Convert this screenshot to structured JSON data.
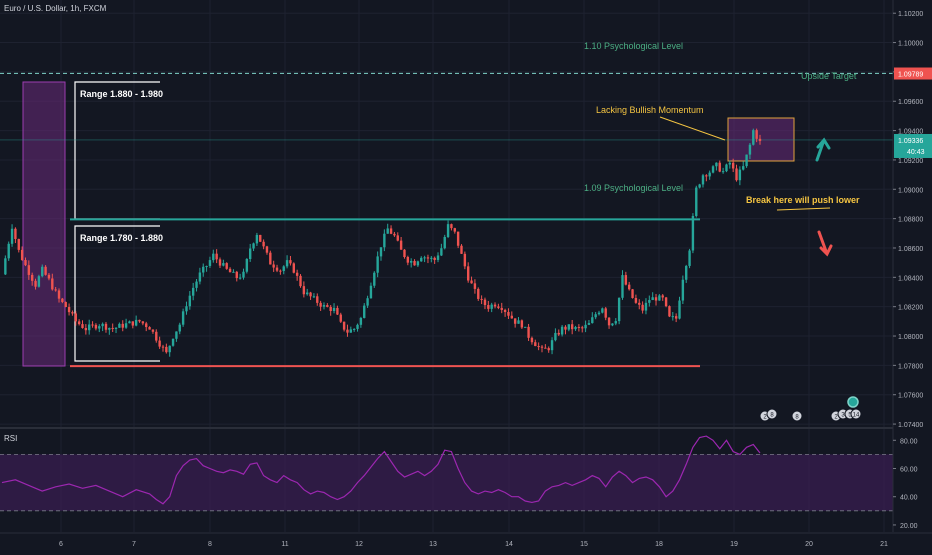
{
  "symbol_title": "Euro / U.S. Dollar, 1h, FXCM",
  "rsi_title": "RSI",
  "colors": {
    "background": "#131722",
    "up": "#26a69a",
    "down": "#ef5350",
    "resistance": "#26a69a",
    "support": "#ef5350",
    "rsi_line": "#9c27b0",
    "rsi_band": "#3b1e52",
    "annotation_text": "#f5c542",
    "level_text": "#4caf84",
    "price_badge": "#26a69a",
    "target_badge": "#ef5350"
  },
  "chart_data": [
    {
      "type": "candlestick",
      "title": "Euro / U.S. Dollar, 1h, FXCM",
      "x_tick_labels": [
        "6",
        "7",
        "8",
        "11",
        "12",
        "13",
        "14",
        "15",
        "18",
        "19",
        "20",
        "21"
      ],
      "y_tick_labels": [
        "1.07400",
        "1.07600",
        "1.07800",
        "1.08000",
        "1.08200",
        "1.08400",
        "1.08600",
        "1.08800",
        "1.09000",
        "1.09200",
        "1.09400",
        "1.09600",
        "1.09800",
        "1.10000",
        "1.10200"
      ],
      "ylim": [
        1.0738,
        1.1029
      ],
      "current_price": "1.09336",
      "countdown": "40:43",
      "target_price": "1.09789",
      "levels": [
        {
          "price": 1.0979,
          "style": "dashed",
          "label": "Upside Target"
        },
        {
          "price": 1.08795,
          "style": "solid",
          "label": ""
        },
        {
          "price": 1.07795,
          "style": "solid",
          "label": ""
        }
      ],
      "annotations": {
        "range_upper": "Range 1.880 - 1.980",
        "range_lower": "Range 1.780 - 1.880",
        "lacking_bullish": "Lacking Bullish Momentum",
        "break_here": "Break here will push lower",
        "psych_110": "1.10 Psychological Level",
        "psych_109": "1.09 Psychological Level",
        "upside_target": "Upside Target"
      },
      "event_markers": [
        "2",
        "8",
        "8",
        "2",
        "3",
        "5",
        "14"
      ],
      "close_path": [
        [
          0,
          1.0842
        ],
        [
          3,
          1.0875
        ],
        [
          5,
          1.0858
        ],
        [
          7,
          1.0848
        ],
        [
          10,
          1.0835
        ],
        [
          12,
          1.0845
        ],
        [
          14,
          1.0838
        ],
        [
          17,
          1.0825
        ],
        [
          19,
          1.082
        ],
        [
          22,
          1.081
        ],
        [
          25,
          1.0805
        ],
        [
          29,
          1.0808
        ],
        [
          33,
          1.0805
        ],
        [
          37,
          1.0808
        ],
        [
          41,
          1.081
        ],
        [
          44,
          1.0806
        ],
        [
          47,
          1.0795
        ],
        [
          49,
          1.0788
        ],
        [
          51,
          1.08
        ],
        [
          53,
          1.0808
        ],
        [
          55,
          1.0822
        ],
        [
          57,
          1.0833
        ],
        [
          59,
          1.0842
        ],
        [
          61,
          1.0848
        ],
        [
          63,
          1.0855
        ],
        [
          65,
          1.085
        ],
        [
          67,
          1.0845
        ],
        [
          70,
          1.084
        ],
        [
          72,
          1.0842
        ],
        [
          74,
          1.086
        ],
        [
          76,
          1.087
        ],
        [
          78,
          1.086
        ],
        [
          80,
          1.085
        ],
        [
          83,
          1.0845
        ],
        [
          85,
          1.085
        ],
        [
          87,
          1.0845
        ],
        [
          90,
          1.083
        ],
        [
          93,
          1.0825
        ],
        [
          96,
          1.082
        ],
        [
          99,
          1.0818
        ],
        [
          101,
          1.0808
        ],
        [
          103,
          1.0803
        ],
        [
          105,
          1.0805
        ],
        [
          107,
          1.0812
        ],
        [
          109,
          1.0828
        ],
        [
          111,
          1.0845
        ],
        [
          113,
          1.0862
        ],
        [
          115,
          1.0873
        ],
        [
          117,
          1.0868
        ],
        [
          119,
          1.0858
        ],
        [
          121,
          1.0852
        ],
        [
          123,
          1.085
        ],
        [
          125,
          1.0855
        ],
        [
          127,
          1.0853
        ],
        [
          129,
          1.0852
        ],
        [
          131,
          1.086
        ],
        [
          133,
          1.0875
        ],
        [
          135,
          1.087
        ],
        [
          137,
          1.0855
        ],
        [
          139,
          1.084
        ],
        [
          141,
          1.083
        ],
        [
          143,
          1.0823
        ],
        [
          145,
          1.082
        ],
        [
          147,
          1.0822
        ],
        [
          149,
          1.082
        ],
        [
          151,
          1.0815
        ],
        [
          153,
          1.081
        ],
        [
          155,
          1.0808
        ],
        [
          157,
          1.08
        ],
        [
          159,
          1.0795
        ],
        [
          161,
          1.079
        ],
        [
          163,
          1.0792
        ],
        [
          165,
          1.08
        ],
        [
          167,
          1.0805
        ],
        [
          169,
          1.0806
        ],
        [
          171,
          1.0805
        ],
        [
          173,
          1.0805
        ],
        [
          175,
          1.0808
        ],
        [
          177,
          1.0815
        ],
        [
          179,
          1.082
        ],
        [
          181,
          1.0808
        ],
        [
          183,
          1.0812
        ],
        [
          185,
          1.084
        ],
        [
          187,
          1.083
        ],
        [
          189,
          1.0822
        ],
        [
          191,
          1.0818
        ],
        [
          193,
          1.0825
        ],
        [
          195,
          1.0826
        ],
        [
          197,
          1.0825
        ],
        [
          199,
          1.0812
        ],
        [
          201,
          1.0812
        ],
        [
          203,
          1.084
        ],
        [
          205,
          1.086
        ],
        [
          207,
          1.09
        ],
        [
          209,
          1.091
        ],
        [
          211,
          1.0912
        ],
        [
          213,
          1.0916
        ],
        [
          215,
          1.0912
        ],
        [
          217,
          1.0918
        ],
        [
          219,
          1.0908
        ],
        [
          221,
          1.0915
        ],
        [
          223,
          1.093
        ],
        [
          224,
          1.094
        ],
        [
          226,
          1.0932
        ]
      ],
      "rsi": {
        "levels": [
          70,
          30
        ],
        "y_tick_labels": [
          "20.00",
          "40.00",
          "60.00",
          "80.00"
        ],
        "ylim": [
          15,
          88
        ],
        "path": [
          [
            0,
            50
          ],
          [
            4,
            52
          ],
          [
            8,
            48
          ],
          [
            12,
            44
          ],
          [
            16,
            47
          ],
          [
            20,
            49
          ],
          [
            24,
            46
          ],
          [
            28,
            48
          ],
          [
            32,
            44
          ],
          [
            36,
            40
          ],
          [
            40,
            45
          ],
          [
            44,
            42
          ],
          [
            46,
            38
          ],
          [
            48,
            35
          ],
          [
            50,
            40
          ],
          [
            52,
            55
          ],
          [
            54,
            62
          ],
          [
            56,
            66
          ],
          [
            58,
            67
          ],
          [
            60,
            62
          ],
          [
            62,
            60
          ],
          [
            64,
            58
          ],
          [
            66,
            57
          ],
          [
            68,
            59
          ],
          [
            70,
            58
          ],
          [
            72,
            56
          ],
          [
            74,
            63
          ],
          [
            76,
            64
          ],
          [
            78,
            55
          ],
          [
            80,
            52
          ],
          [
            82,
            50
          ],
          [
            84,
            55
          ],
          [
            86,
            52
          ],
          [
            88,
            50
          ],
          [
            90,
            45
          ],
          [
            92,
            42
          ],
          [
            94,
            44
          ],
          [
            96,
            43
          ],
          [
            98,
            40
          ],
          [
            100,
            38
          ],
          [
            102,
            40
          ],
          [
            104,
            44
          ],
          [
            106,
            50
          ],
          [
            108,
            55
          ],
          [
            110,
            61
          ],
          [
            112,
            67
          ],
          [
            114,
            72
          ],
          [
            116,
            65
          ],
          [
            118,
            58
          ],
          [
            120,
            54
          ],
          [
            122,
            56
          ],
          [
            124,
            58
          ],
          [
            126,
            55
          ],
          [
            128,
            58
          ],
          [
            130,
            63
          ],
          [
            132,
            73
          ],
          [
            134,
            72
          ],
          [
            136,
            60
          ],
          [
            138,
            50
          ],
          [
            140,
            44
          ],
          [
            142,
            42
          ],
          [
            144,
            44
          ],
          [
            146,
            43
          ],
          [
            148,
            45
          ],
          [
            150,
            43
          ],
          [
            152,
            40
          ],
          [
            154,
            40
          ],
          [
            156,
            37
          ],
          [
            158,
            36
          ],
          [
            160,
            37
          ],
          [
            162,
            44
          ],
          [
            164,
            47
          ],
          [
            166,
            48
          ],
          [
            168,
            50
          ],
          [
            170,
            48
          ],
          [
            172,
            50
          ],
          [
            174,
            52
          ],
          [
            176,
            55
          ],
          [
            178,
            53
          ],
          [
            180,
            47
          ],
          [
            182,
            54
          ],
          [
            184,
            58
          ],
          [
            186,
            55
          ],
          [
            188,
            50
          ],
          [
            190,
            53
          ],
          [
            192,
            54
          ],
          [
            194,
            52
          ],
          [
            196,
            47
          ],
          [
            198,
            40
          ],
          [
            200,
            44
          ],
          [
            202,
            52
          ],
          [
            204,
            63
          ],
          [
            206,
            75
          ],
          [
            208,
            82
          ],
          [
            210,
            83
          ],
          [
            212,
            80
          ],
          [
            214,
            74
          ],
          [
            216,
            80
          ],
          [
            218,
            72
          ],
          [
            220,
            70
          ],
          [
            222,
            75
          ],
          [
            224,
            77
          ],
          [
            226,
            71
          ]
        ]
      }
    }
  ]
}
